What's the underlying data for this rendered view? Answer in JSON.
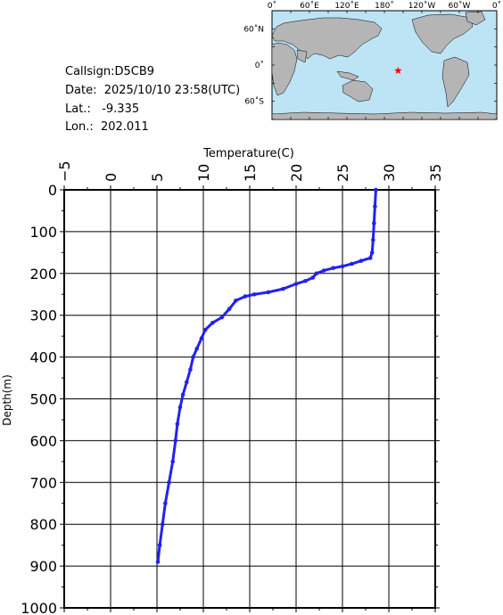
{
  "info": {
    "callsign": "Callsign:D5CB9",
    "date": "Date:  2025/10/10 23:58(UTC)",
    "lat": "Lat.:   -9.335",
    "lon": "Lon.:  202.011"
  },
  "map": {
    "top_labels": [
      "0˚",
      "60˚E",
      "120˚E",
      "180˚",
      "120˚W",
      "60˚W",
      "0˚"
    ],
    "left_labels": [
      "60˚N",
      "0˚",
      "60˚S"
    ],
    "ocean_color": "#bde4f4",
    "land_color": "#b5b5b5",
    "marker": {
      "lon": 202.011,
      "lat": -9.335,
      "color": "#ff0000",
      "icon": "star-icon"
    }
  },
  "chart_data": {
    "type": "line",
    "title": "",
    "xlabel": "Temperature(C)",
    "ylabel": "Depth(m)",
    "xlim": [
      -5,
      35
    ],
    "ylim": [
      1000,
      0
    ],
    "x_ticks": [
      "-5",
      "0",
      "5",
      "10",
      "15",
      "20",
      "25",
      "30",
      "35"
    ],
    "y_ticks": [
      "0",
      "100",
      "200",
      "300",
      "400",
      "500",
      "600",
      "700",
      "800",
      "900",
      "1000"
    ],
    "grid": true,
    "line_color": "#2222ee",
    "series": [
      {
        "points": [
          [
            28.6,
            0
          ],
          [
            28.5,
            40
          ],
          [
            28.4,
            80
          ],
          [
            28.3,
            120
          ],
          [
            28.2,
            150
          ],
          [
            28.0,
            163
          ],
          [
            27.0,
            170
          ],
          [
            26.0,
            177
          ],
          [
            25.0,
            183
          ],
          [
            24.0,
            187
          ],
          [
            23.0,
            193
          ],
          [
            22.2,
            200
          ],
          [
            21.8,
            210
          ],
          [
            21.0,
            218
          ],
          [
            20.0,
            225
          ],
          [
            18.6,
            237
          ],
          [
            17.0,
            245
          ],
          [
            15.5,
            250
          ],
          [
            14.5,
            255
          ],
          [
            13.5,
            265
          ],
          [
            12.8,
            285
          ],
          [
            12.0,
            305
          ],
          [
            11.0,
            318
          ],
          [
            10.2,
            335
          ],
          [
            9.8,
            355
          ],
          [
            9.3,
            380
          ],
          [
            8.9,
            400
          ],
          [
            8.6,
            430
          ],
          [
            8.2,
            460
          ],
          [
            7.8,
            490
          ],
          [
            7.5,
            520
          ],
          [
            7.2,
            560
          ],
          [
            7.0,
            600
          ],
          [
            6.7,
            650
          ],
          [
            6.3,
            700
          ],
          [
            5.9,
            750
          ],
          [
            5.6,
            800
          ],
          [
            5.3,
            850
          ],
          [
            5.1,
            890
          ]
        ]
      }
    ]
  }
}
